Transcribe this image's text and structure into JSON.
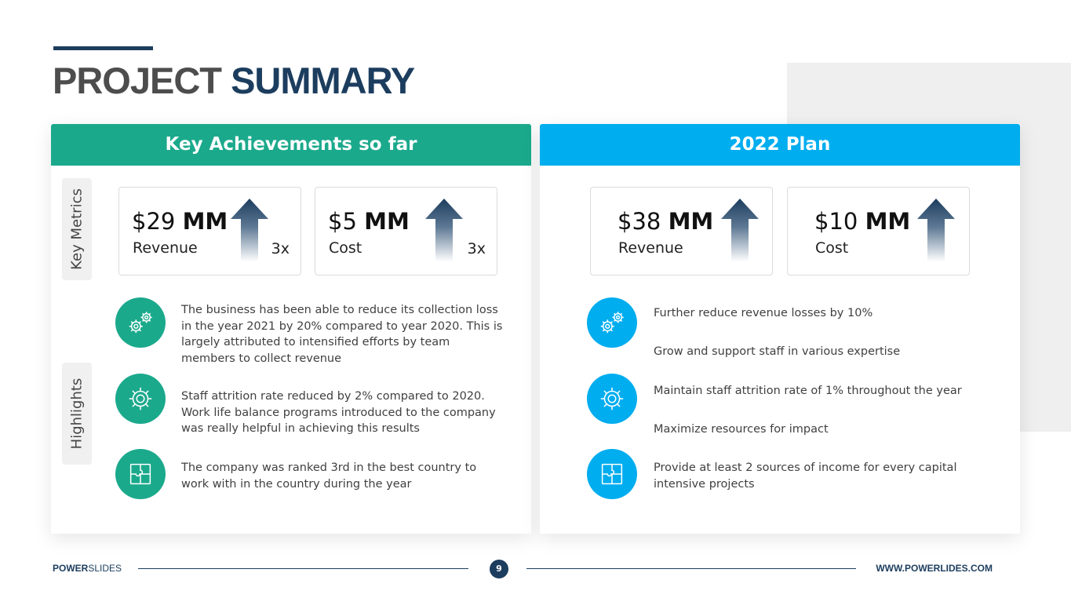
{
  "title": {
    "part1": "PROJECT",
    "part2": "SUMMARY"
  },
  "colors": {
    "green": "#1ba98c",
    "blue": "#00adef",
    "navy": "#1c3d5e"
  },
  "left": {
    "header": "Key Achievements so far",
    "side_labels": {
      "metrics": "Key Metrics",
      "highlights": "Highlights"
    },
    "cards": [
      {
        "amount": "$29",
        "unit": "MM",
        "label": "Revenue",
        "multiplier": "3x"
      },
      {
        "amount": "$5",
        "unit": "MM",
        "label": "Cost",
        "multiplier": "3x"
      }
    ],
    "highlights": [
      {
        "icon": "gears-icon",
        "text": "The business has been able to reduce its collection loss in the year 2021 by 20% compared to year 2020. This is largely attributed to intensified efforts by team members to collect revenue"
      },
      {
        "icon": "gear-icon",
        "text": "Staff attrition rate reduced by 2% compared to 2020. Work life balance programs introduced to the company was really helpful in achieving this results"
      },
      {
        "icon": "puzzle-icon",
        "text": "The company was ranked 3rd in the best country to work with in the country during the year"
      }
    ]
  },
  "right": {
    "header": "2022 Plan",
    "cards": [
      {
        "amount": "$38",
        "unit": "MM",
        "label": "Revenue"
      },
      {
        "amount": "$10",
        "unit": "MM",
        "label": "Cost"
      }
    ],
    "plans": [
      "Further reduce revenue losses by 10%",
      "Grow and support staff in various expertise",
      "Maintain staff attrition rate of 1% throughout the year",
      "Maximize resources for impact",
      "Provide at least 2 sources of income for every capital intensive projects"
    ],
    "icons": [
      "gears-icon",
      "gear-icon",
      "puzzle-icon"
    ]
  },
  "footer": {
    "brand_bold": "POWER",
    "brand_rest": "SLIDES",
    "page": "9",
    "url": "WWW.POWERLIDES.COM"
  }
}
